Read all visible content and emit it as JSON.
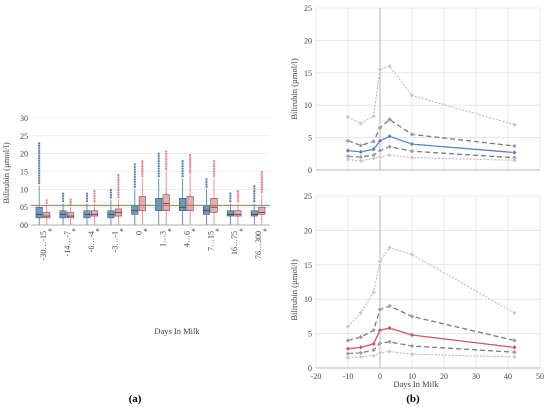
{
  "chart_data": [
    {
      "type": "box",
      "panel_label": "(a)",
      "xlabel": "Days In Milk",
      "ylabel": "Bilirubin (µmol/l)",
      "ylim": [
        0,
        30
      ],
      "yticks": [
        0,
        5,
        10,
        15,
        20,
        25,
        30
      ],
      "reference_line": 5.5,
      "reference_color": "#2fb35f",
      "series_colors": [
        "#5b84b8",
        "#e0868e"
      ],
      "categories": [
        {
          "label": "-30…-15",
          "star": true,
          "boxes": [
            {
              "wlo": 0,
              "q1": 2,
              "med": 3,
              "q3": 5,
              "whi": 11,
              "outlier_top": 23.5
            },
            {
              "wlo": 0,
              "q1": 2,
              "med": 2.5,
              "q3": 3.5,
              "whi": 5.5,
              "outlier_top": 7
            }
          ]
        },
        {
          "label": "-14…-7",
          "star": true,
          "boxes": [
            {
              "wlo": 0,
              "q1": 2,
              "med": 3,
              "q3": 4,
              "whi": 6,
              "outlier_top": 9
            },
            {
              "wlo": 0,
              "q1": 2,
              "med": 2.5,
              "q3": 3.5,
              "whi": 5,
              "outlier_top": 7.5
            }
          ]
        },
        {
          "label": "-6…-4",
          "star": true,
          "boxes": [
            {
              "wlo": 0,
              "q1": 2,
              "med": 3,
              "q3": 4,
              "whi": 6,
              "outlier_top": 9
            },
            {
              "wlo": 0,
              "q1": 2.5,
              "med": 3,
              "q3": 4,
              "whi": 6,
              "outlier_top": 10
            }
          ]
        },
        {
          "label": "-3…-1",
          "star": true,
          "boxes": [
            {
              "wlo": 0,
              "q1": 2,
              "med": 3,
              "q3": 4,
              "whi": 7,
              "outlier_top": 10
            },
            {
              "wlo": 0,
              "q1": 2.5,
              "med": 3.5,
              "q3": 4.5,
              "whi": 7,
              "outlier_top": 14
            }
          ]
        },
        {
          "label": "0",
          "star": true,
          "boxes": [
            {
              "wlo": 0,
              "q1": 3,
              "med": 4,
              "q3": 5.5,
              "whi": 10,
              "outlier_top": 17.5
            },
            {
              "wlo": 0,
              "q1": 4,
              "med": 5.5,
              "q3": 8,
              "whi": 13,
              "outlier_top": 18
            }
          ]
        },
        {
          "label": "1…3",
          "star": true,
          "boxes": [
            {
              "wlo": 0,
              "q1": 4,
              "med": 5.5,
              "q3": 7.5,
              "whi": 13,
              "outlier_top": 20
            },
            {
              "wlo": 0,
              "q1": 4,
              "med": 6,
              "q3": 8.5,
              "whi": 15,
              "outlier_top": 21
            }
          ]
        },
        {
          "label": "4…6",
          "star": true,
          "boxes": [
            {
              "wlo": 0,
              "q1": 4,
              "med": 5,
              "q3": 7.5,
              "whi": 13,
              "outlier_top": 18.5
            },
            {
              "wlo": 0,
              "q1": 4,
              "med": 5.5,
              "q3": 8,
              "whi": 14,
              "outlier_top": 20
            }
          ]
        },
        {
          "label": "7…15",
          "star": true,
          "boxes": [
            {
              "wlo": 0,
              "q1": 3,
              "med": 4,
              "q3": 5.5,
              "whi": 10,
              "outlier_top": 13
            },
            {
              "wlo": 0,
              "q1": 3.5,
              "med": 5,
              "q3": 7.5,
              "whi": 13,
              "outlier_top": 18
            }
          ]
        },
        {
          "label": "16…75",
          "star": true,
          "boxes": [
            {
              "wlo": 0,
              "q1": 2.5,
              "med": 3,
              "q3": 4,
              "whi": 6,
              "outlier_top": 9
            },
            {
              "wlo": 0,
              "q1": 2.5,
              "med": 3,
              "q3": 4,
              "whi": 6,
              "outlier_top": 10
            }
          ]
        },
        {
          "label": "76…300",
          "star": true,
          "boxes": [
            {
              "wlo": 0,
              "q1": 2.5,
              "med": 3,
              "q3": 4,
              "whi": 6,
              "outlier_top": 11
            },
            {
              "wlo": 0,
              "q1": 3,
              "med": 3.5,
              "q3": 5,
              "whi": 8.5,
              "outlier_top": 15
            }
          ]
        }
      ]
    },
    {
      "type": "line",
      "panel_label": "(b)",
      "ylabel": "Bilirubin (µmol/l)",
      "xlim": [
        -20,
        50
      ],
      "ylim": [
        0,
        25
      ],
      "yticks": [
        0,
        5,
        10,
        15,
        20,
        25
      ],
      "accent": "#5b84b8",
      "x": [
        -10,
        -6,
        -2,
        0,
        3,
        10,
        42
      ],
      "series": [
        {
          "values": [
            8.2,
            7.2,
            8.3,
            15.5,
            16.0,
            11.5,
            7.0
          ],
          "style": "dotted",
          "color": "#b5b5b5",
          "marker_color": "#c8c8c8"
        },
        {
          "values": [
            4.5,
            3.8,
            4.4,
            6.5,
            7.8,
            5.5,
            3.7
          ],
          "style": "dashed",
          "color": "#7a7a7a",
          "marker_color": "#9a9a9a"
        },
        {
          "values": [
            3.0,
            2.8,
            3.2,
            4.5,
            5.2,
            4.0,
            2.7
          ],
          "style": "solid",
          "color": "#5b84b8",
          "marker_color": "#5b84b8"
        },
        {
          "values": [
            2.1,
            2.0,
            2.3,
            3.0,
            3.6,
            2.9,
            1.9
          ],
          "style": "dashed",
          "color": "#7a7a7a",
          "marker_color": "#9a9a9a"
        },
        {
          "values": [
            1.6,
            1.4,
            1.8,
            2.0,
            2.3,
            1.9,
            1.5
          ],
          "style": "dotted",
          "color": "#b5b5b5",
          "marker_color": "#c8c8c8"
        }
      ]
    },
    {
      "type": "line",
      "xlabel": "Days In Milk",
      "ylabel": "Bilirubin (µmol/l)",
      "xlim": [
        -20,
        50
      ],
      "ylim": [
        0,
        25
      ],
      "yticks": [
        0,
        5,
        10,
        15,
        20,
        25
      ],
      "xticks": [
        -20,
        -10,
        0,
        10,
        20,
        30,
        40,
        50
      ],
      "accent": "#c9585e",
      "x": [
        -10,
        -6,
        -2,
        0,
        3,
        10,
        42
      ],
      "series": [
        {
          "values": [
            6.0,
            8.0,
            11.0,
            15.5,
            17.5,
            16.5,
            8.0
          ],
          "style": "dotted",
          "color": "#b5b5b5",
          "marker_color": "#c8c8c8"
        },
        {
          "values": [
            4.0,
            4.5,
            5.5,
            8.5,
            9.0,
            7.5,
            4.0
          ],
          "style": "dashed",
          "color": "#7a7a7a",
          "marker_color": "#9a9a9a"
        },
        {
          "values": [
            2.8,
            3.0,
            3.5,
            5.5,
            5.8,
            4.8,
            3.0
          ],
          "style": "solid",
          "color": "#c9585e",
          "marker_color": "#c9585e"
        },
        {
          "values": [
            2.1,
            2.2,
            2.6,
            3.6,
            3.8,
            3.2,
            2.3
          ],
          "style": "dashed",
          "color": "#7a7a7a",
          "marker_color": "#9a9a9a"
        },
        {
          "values": [
            1.5,
            1.6,
            1.8,
            2.2,
            2.4,
            2.0,
            1.6
          ],
          "style": "dotted",
          "color": "#b5b5b5",
          "marker_color": "#c8c8c8"
        }
      ]
    }
  ]
}
